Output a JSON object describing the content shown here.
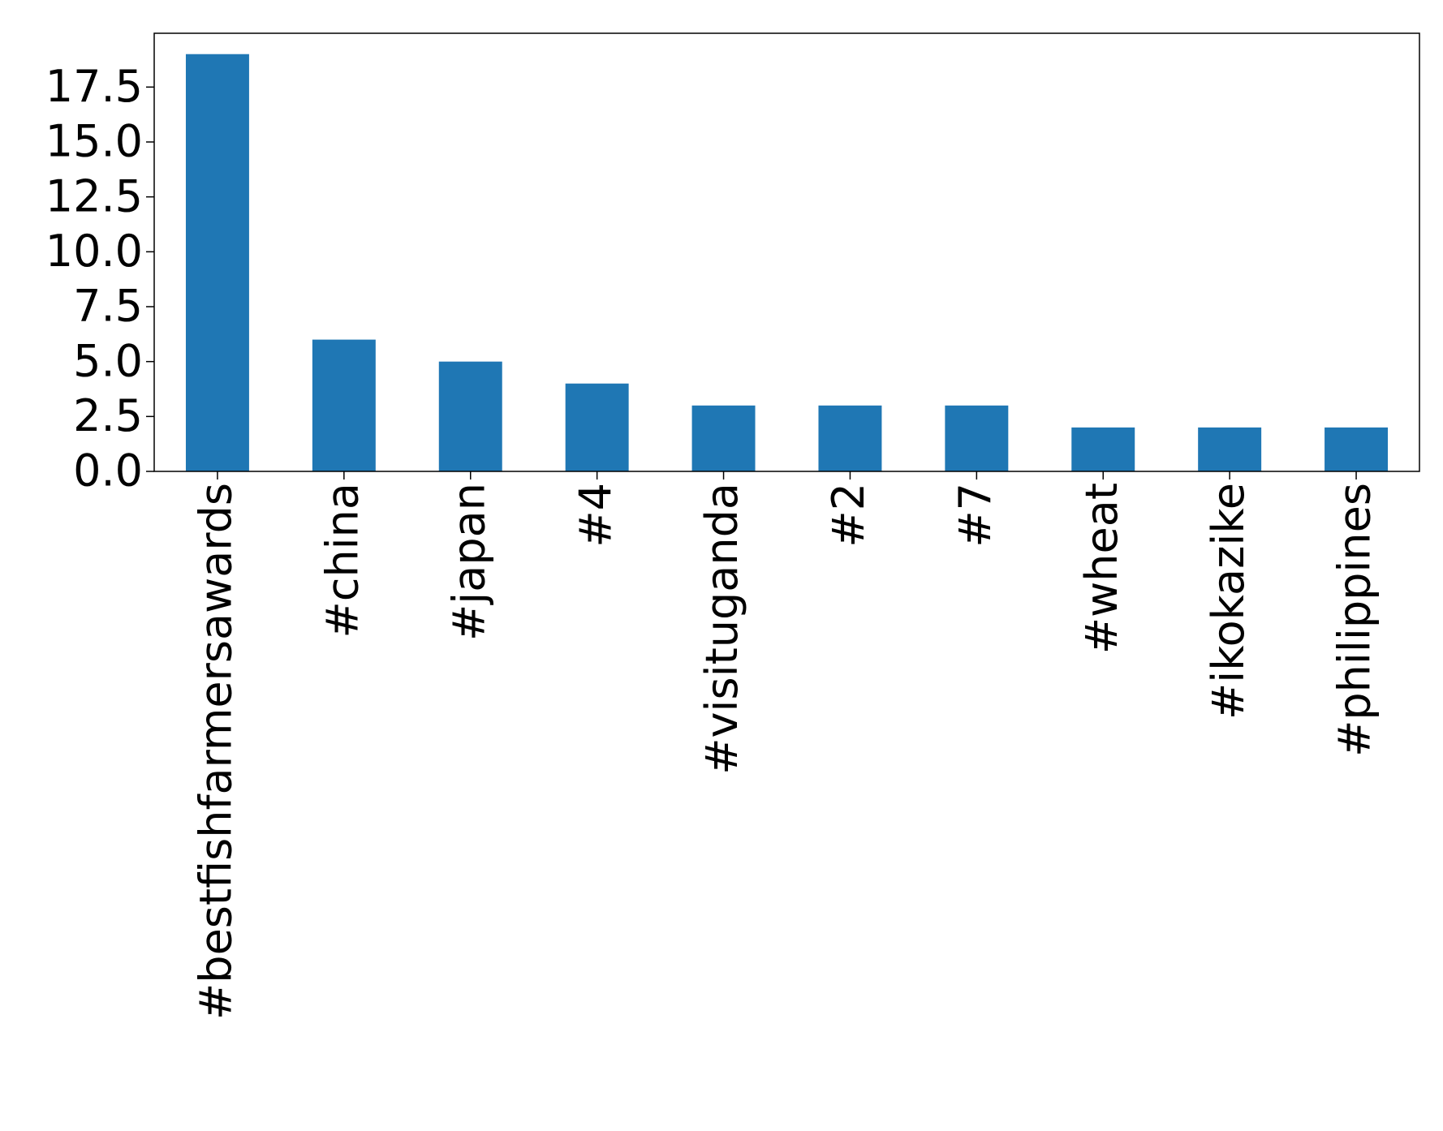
{
  "chart_data": {
    "type": "bar",
    "categories": [
      "#bestfishfarmersawards",
      "#china",
      "#japan",
      "#4",
      "#visituganda",
      "#2",
      "#7",
      "#wheat",
      "#ikokazike",
      "#philippines"
    ],
    "values": [
      19,
      6,
      5,
      4,
      3,
      3,
      3,
      2,
      2,
      2
    ],
    "color": "#1f77b4",
    "ylim": [
      0,
      19.95
    ],
    "yticks": [
      {
        "value": 0,
        "label": "0.0"
      },
      2.5,
      {
        "value": 5,
        "label": "5.0"
      },
      7.5,
      {
        "value": 10,
        "label": "10.0"
      },
      12.5,
      {
        "value": 15,
        "label": "15.0"
      },
      17.5
    ],
    "grid": false
  }
}
